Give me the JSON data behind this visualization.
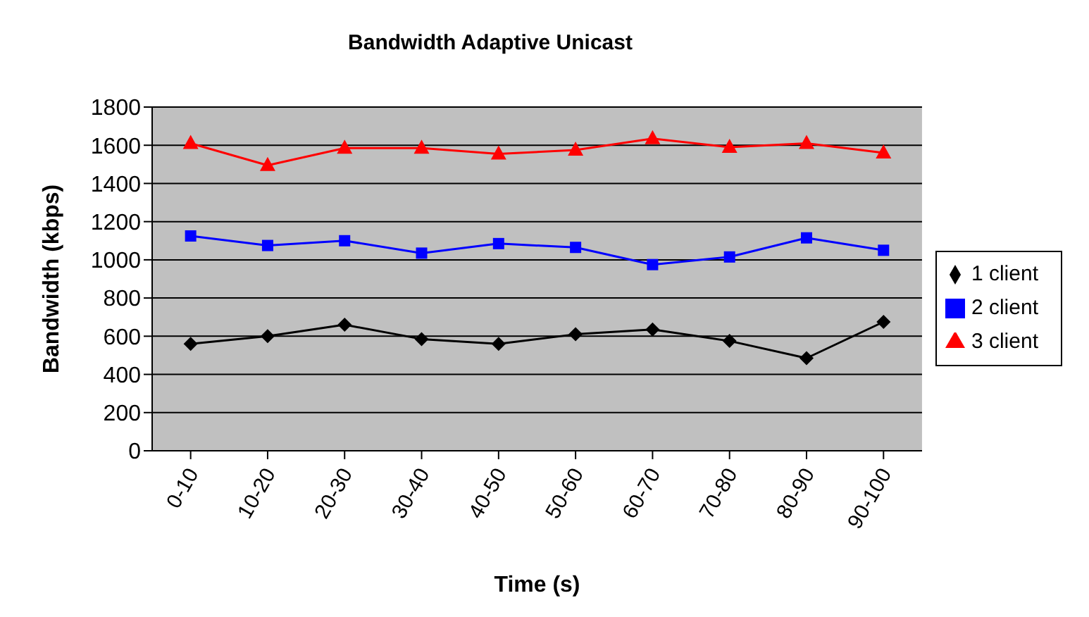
{
  "chart_data": {
    "type": "line",
    "title": "Bandwidth Adaptive Unicast",
    "xlabel": "Time (s)",
    "ylabel": "Bandwidth (kbps)",
    "categories": [
      "0-10",
      "10-20",
      "20-30",
      "30-40",
      "40-50",
      "50-60",
      "60-70",
      "70-80",
      "80-90",
      "90-100"
    ],
    "series": [
      {
        "name": "1 client",
        "color": "#000000",
        "marker": "diamond",
        "values": [
          560,
          600,
          660,
          585,
          560,
          610,
          635,
          575,
          485,
          675
        ]
      },
      {
        "name": "2 client",
        "color": "#0000ff",
        "marker": "square",
        "values": [
          1125,
          1075,
          1100,
          1035,
          1085,
          1065,
          975,
          1015,
          1115,
          1050
        ]
      },
      {
        "name": "3 client",
        "color": "#ff0000",
        "marker": "triangle",
        "values": [
          1610,
          1495,
          1585,
          1585,
          1555,
          1575,
          1635,
          1590,
          1610,
          1560
        ]
      }
    ],
    "ylim": [
      0,
      1800
    ],
    "yticks": [
      0,
      200,
      400,
      600,
      800,
      1000,
      1200,
      1400,
      1600,
      1800
    ],
    "grid": "y",
    "legend": "right",
    "line_style": "solid"
  }
}
